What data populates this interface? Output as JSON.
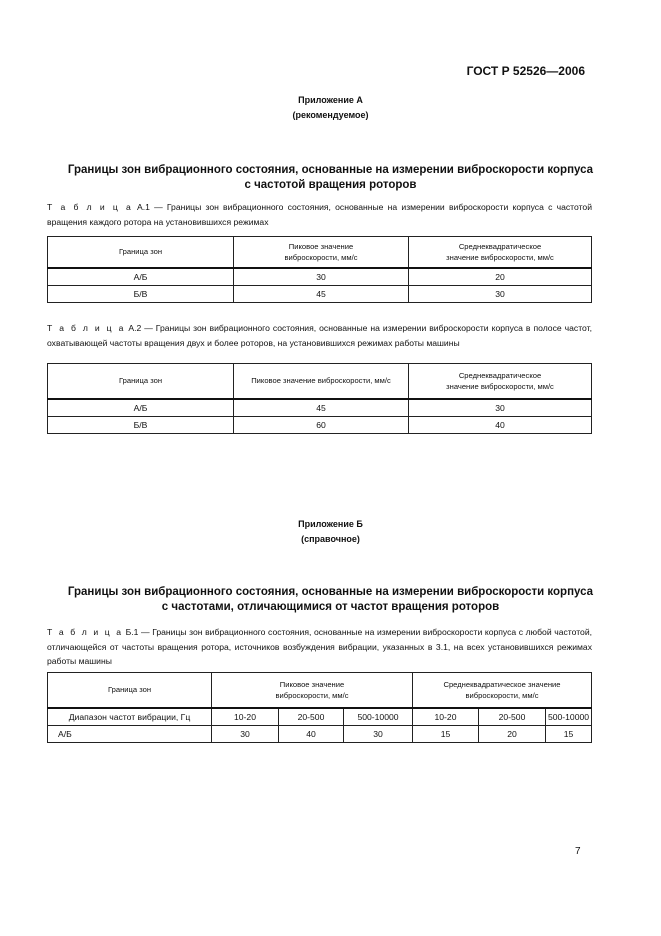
{
  "header": {
    "doc_code": "ГОСТ Р 52526—2006"
  },
  "appendix_a": {
    "label": "Приложение А",
    "status": "(рекомендуемое)",
    "title": [
      "Границы зон вибрационного состояния, основанные на измерении виброскорости корпуса",
      "с частотой вращения роторов"
    ],
    "table_a1": {
      "caption_prefix": "Т а б л и ц а",
      "caption": "А.1 — Границы зон вибрационного состояния, основанные на измерении виброскорости корпуса с частотой вращения каждого ротора на установившихся режимах",
      "headers": [
        "Граница зон",
        "Пиковое значение виброскорости, мм/с",
        "Среднеквадратическое значение виброскорости, мм/с"
      ],
      "rows": [
        [
          "А/Б",
          "30",
          "20"
        ],
        [
          "Б/В",
          "45",
          "30"
        ]
      ]
    },
    "table_a2": {
      "caption_prefix": "Т а б л и ц а",
      "caption": "А.2 — Границы зон вибрационного состояния, основанные на измерении виброскорости корпуса в полосе частот, охватывающей частоты вращения двух и более роторов, на установившихся режимах работы машины",
      "headers": [
        "Граница зон",
        "Пиковое значение виброскорости, мм/с",
        "Среднеквадратическое значение виброскорости, мм/с"
      ],
      "rows": [
        [
          "А/Б",
          "45",
          "30"
        ],
        [
          "Б/В",
          "60",
          "40"
        ]
      ]
    }
  },
  "appendix_b": {
    "label": "Приложение Б",
    "status": "(справочное)",
    "title": [
      "Границы зон вибрационного состояния, основанные на измерении виброскорости корпуса",
      "с частотами, отличающимися от частот вращения роторов"
    ],
    "table_b1": {
      "caption_prefix": "Т а б л и ц а",
      "caption": "Б.1 — Границы зон вибрационного состояния, основанные на измерении виброскорости корпуса с любой частотой, отличающейся от частоты вращения ротора, источников возбуждения вибрации, указанных в 3.1, на всех установившихся режимах работы машины",
      "headers": [
        "Граница зон",
        "Пиковое значение виброскорости, мм/с",
        "Среднеквадратическое значение виброскорости, мм/с"
      ],
      "freq_row": [
        "Диапазон частот вибрации, Гц",
        "10-20",
        "20-500",
        "500-10000",
        "10-20",
        "20-500",
        "500-10000"
      ],
      "rows": [
        [
          "А/Б",
          "30",
          "40",
          "30",
          "15",
          "20",
          "15"
        ]
      ]
    }
  },
  "page_number": "7"
}
